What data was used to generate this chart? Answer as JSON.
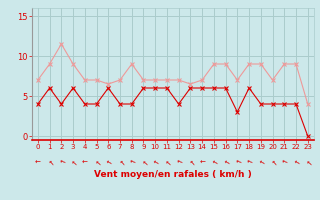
{
  "hours": [
    0,
    1,
    2,
    3,
    4,
    5,
    6,
    7,
    8,
    9,
    10,
    11,
    12,
    13,
    14,
    15,
    16,
    17,
    18,
    19,
    20,
    21,
    22,
    23
  ],
  "wind_mean": [
    4,
    6,
    4,
    6,
    4,
    4,
    6,
    4,
    4,
    6,
    6,
    6,
    4,
    6,
    6,
    6,
    6,
    3,
    6,
    4,
    4,
    4,
    4,
    0
  ],
  "wind_gust": [
    7,
    9,
    11.5,
    9,
    7,
    7,
    6.5,
    7,
    9,
    7,
    7,
    7,
    7,
    6.5,
    7,
    9,
    9,
    7,
    9,
    9,
    7,
    9,
    9,
    4
  ],
  "mean_color": "#dd0000",
  "gust_color": "#ee9999",
  "background_color": "#cce8ea",
  "grid_color": "#aacccc",
  "xlabel": "Vent moyen/en rafales ( km/h )",
  "ylim": [
    -0.5,
    16
  ],
  "yticks": [
    0,
    5,
    10,
    15
  ],
  "xlabel_color": "#dd0000",
  "tick_color": "#dd0000",
  "arrow_symbols": [
    "↰",
    "↰",
    "↰",
    "↰",
    "←",
    "←",
    "↵",
    "↵",
    "←",
    "←",
    "←",
    "←",
    "←",
    "←",
    "←",
    "←",
    "↵",
    "←",
    "←",
    "←",
    "←",
    "↰",
    "←",
    "↲"
  ]
}
